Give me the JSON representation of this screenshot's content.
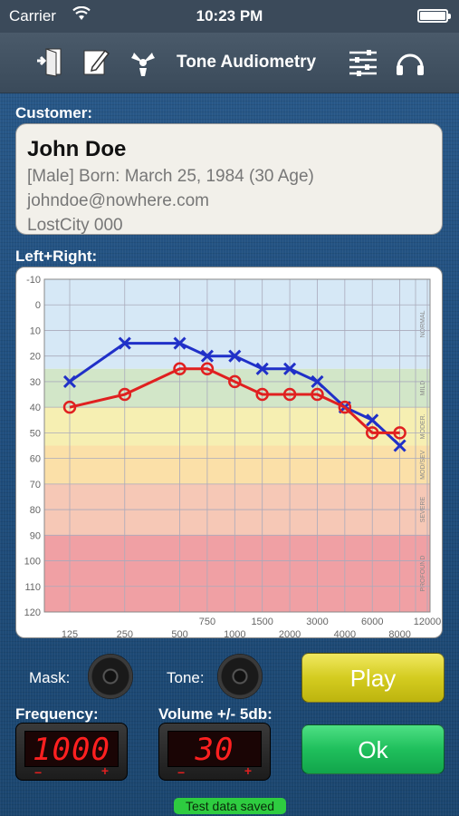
{
  "status_bar": {
    "carrier": "Carrier",
    "time": "10:23 PM"
  },
  "toolbar": {
    "title": "Tone Audiometry",
    "icons": [
      "exit-door-icon",
      "edit-icon",
      "radiation-icon",
      "settings-sliders-icon",
      "headphones-icon"
    ]
  },
  "customer": {
    "label": "Customer:",
    "name": "John Doe",
    "details": "[Male] Born: March 25, 1984 (30 Age)",
    "email": "johndoe@nowhere.com",
    "address": "LostCity 000"
  },
  "chart_section": {
    "label": "Left+Right:"
  },
  "chart_data": {
    "type": "line",
    "x_ticks_lower": [
      "125",
      "250",
      "500",
      "1000",
      "2000",
      "4000",
      "8000"
    ],
    "x_ticks_upper": [
      "750",
      "1500",
      "3000",
      "6000",
      "12000"
    ],
    "y_ticks": [
      "-10",
      "0",
      "10",
      "20",
      "30",
      "40",
      "50",
      "60",
      "70",
      "80",
      "90",
      "100",
      "110",
      "120"
    ],
    "ylim": [
      -10,
      120
    ],
    "bands": [
      {
        "label": "NORMAL",
        "from": -10,
        "to": 25,
        "color": "#d6e8f6"
      },
      {
        "label": "MILD",
        "from": 25,
        "to": 40,
        "color": "#d2e6c8"
      },
      {
        "label": "MODER.",
        "from": 40,
        "to": 55,
        "color": "#f6efb2"
      },
      {
        "label": "MOD/SEV",
        "from": 55,
        "to": 70,
        "color": "#fbe0a8"
      },
      {
        "label": "SEVERE",
        "from": 70,
        "to": 90,
        "color": "#f6c8b6"
      },
      {
        "label": "PROFOUND",
        "from": 90,
        "to": 120,
        "color": "#f0a0a4"
      }
    ],
    "series": [
      {
        "marker": "x",
        "color": "#2030c8",
        "freqs": [
          125,
          250,
          500,
          750,
          1000,
          1500,
          2000,
          3000,
          4000,
          6000,
          8000
        ],
        "values": [
          30,
          15,
          15,
          20,
          20,
          25,
          25,
          30,
          40,
          45,
          55
        ]
      },
      {
        "marker": "o",
        "color": "#e02020",
        "freqs": [
          125,
          250,
          500,
          750,
          1000,
          1500,
          2000,
          3000,
          4000,
          6000,
          8000
        ],
        "values": [
          40,
          35,
          25,
          25,
          30,
          35,
          35,
          35,
          40,
          50,
          50
        ]
      }
    ]
  },
  "controls": {
    "mask_label": "Mask:",
    "tone_label": "Tone:",
    "play_label": "Play",
    "ok_label": "Ok",
    "frequency_label": "Frequency:",
    "frequency_value": "1000",
    "volume_label": "Volume +/- 5db:",
    "volume_value": "30",
    "minus_sign": "−",
    "plus_sign": "+",
    "status_message": "Test data saved"
  }
}
